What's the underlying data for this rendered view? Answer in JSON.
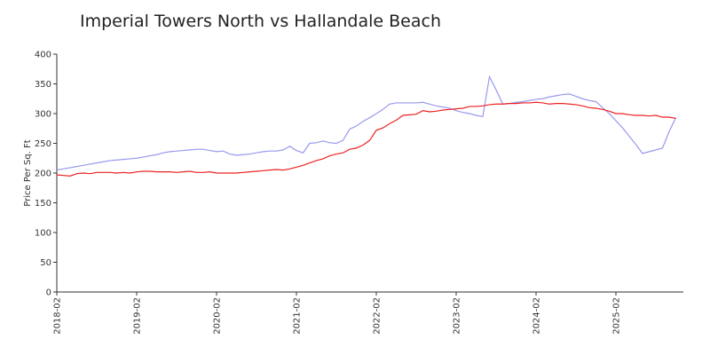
{
  "chart_data": {
    "type": "line",
    "title": "Imperial Towers North vs Hallandale Beach",
    "y_label": "Price Per Sq. Ft",
    "x": [
      "2018-02",
      "2018-03",
      "2018-04",
      "2018-05",
      "2018-06",
      "2018-07",
      "2018-08",
      "2018-09",
      "2018-10",
      "2018-11",
      "2018-12",
      "2019-01",
      "2019-02",
      "2019-03",
      "2019-04",
      "2019-05",
      "2019-06",
      "2019-07",
      "2019-08",
      "2019-09",
      "2019-10",
      "2019-11",
      "2019-12",
      "2020-01",
      "2020-02",
      "2020-03",
      "2020-04",
      "2020-05",
      "2020-06",
      "2020-07",
      "2020-08",
      "2020-09",
      "2020-10",
      "2020-11",
      "2020-12",
      "2021-01",
      "2021-02",
      "2021-03",
      "2021-04",
      "2021-05",
      "2021-06",
      "2021-07",
      "2021-08",
      "2021-09",
      "2021-10",
      "2021-11",
      "2021-12",
      "2022-01",
      "2022-02",
      "2022-03",
      "2022-04",
      "2022-05",
      "2022-06",
      "2022-07",
      "2022-08",
      "2022-09",
      "2022-10",
      "2022-11",
      "2022-12",
      "2023-01",
      "2023-02",
      "2023-03",
      "2023-04",
      "2023-05",
      "2023-06",
      "2023-07",
      "2023-08",
      "2023-09",
      "2023-10",
      "2023-11",
      "2023-12",
      "2024-01",
      "2024-02",
      "2024-03",
      "2024-04",
      "2024-05",
      "2024-06",
      "2024-07",
      "2024-08",
      "2024-09",
      "2024-10",
      "2024-11",
      "2024-12",
      "2025-01",
      "2025-02",
      "2025-03",
      "2025-04",
      "2025-05",
      "2025-06",
      "2025-07",
      "2025-08",
      "2025-09",
      "2025-10",
      "2025-11"
    ],
    "xticks": [
      "2018-02",
      "2019-02",
      "2020-02",
      "2021-02",
      "2022-02",
      "2023-02",
      "2024-02",
      "2025-02"
    ],
    "series": [
      {
        "color": "#9999ee",
        "values": [
          205,
          207,
          209,
          211,
          213,
          215,
          217,
          219,
          221,
          222,
          223,
          224,
          225,
          227,
          229,
          231,
          234,
          236,
          237,
          238,
          239,
          240,
          240,
          238,
          236,
          237,
          232,
          230,
          231,
          232,
          234,
          236,
          237,
          237,
          239,
          245,
          238,
          234,
          250,
          251,
          254,
          251,
          250,
          255,
          274,
          279,
          287,
          293,
          300,
          307,
          316,
          318,
          318,
          318,
          318,
          319,
          316,
          313,
          311,
          309,
          305,
          302,
          300,
          297,
          295,
          362,
          340,
          316,
          317,
          319,
          320,
          322,
          324,
          325,
          328,
          330,
          332,
          333,
          329,
          325,
          322,
          320,
          310,
          300,
          288,
          276,
          262,
          248,
          233,
          236,
          239,
          242,
          270,
          293
        ]
      },
      {
        "color": "#ee2222",
        "values": [
          197,
          196,
          195,
          199,
          200,
          199,
          201,
          201,
          201,
          200,
          201,
          200,
          202,
          203,
          203,
          202,
          202,
          202,
          201,
          202,
          203,
          201,
          201,
          202,
          200,
          200,
          200,
          200,
          201,
          202,
          203,
          204,
          205,
          206,
          205,
          207,
          210,
          213,
          217,
          221,
          224,
          229,
          232,
          234,
          240,
          242,
          247,
          255,
          272,
          276,
          283,
          289,
          297,
          298,
          299,
          305,
          303,
          304,
          306,
          307,
          308,
          309,
          312,
          312,
          313,
          315,
          316,
          316,
          317,
          317,
          318,
          318,
          319,
          318,
          316,
          317,
          317,
          316,
          315,
          313,
          310,
          309,
          307,
          304,
          300,
          300,
          298,
          297,
          297,
          296,
          297,
          294,
          294,
          292
        ]
      }
    ],
    "ylim": [
      0,
      400
    ],
    "yticks": [
      0,
      50,
      100,
      150,
      200,
      250,
      300,
      350,
      400
    ]
  }
}
